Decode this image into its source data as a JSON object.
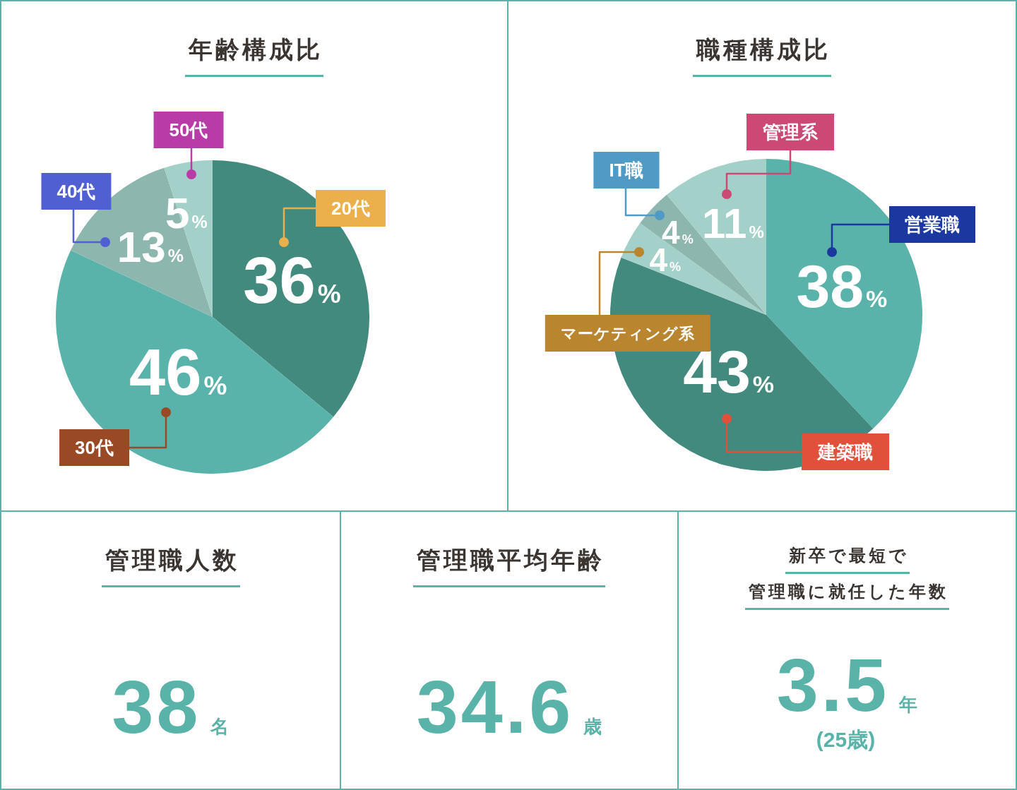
{
  "chart_data": [
    {
      "type": "pie",
      "title": "年齢構成比",
      "categories": [
        "20代",
        "30代",
        "40代",
        "50代"
      ],
      "values": [
        36,
        46,
        13,
        5
      ],
      "colors": [
        "#418a7d",
        "#59b3ab",
        "#8cb6ae",
        "#a3d0c8"
      ],
      "value_labels": [
        "36%",
        "46%",
        "13%",
        "5%"
      ]
    },
    {
      "type": "pie",
      "title": "職種構成比",
      "categories": [
        "営業職",
        "建築職",
        "マーケティング系",
        "IT職",
        "管理系"
      ],
      "values": [
        38,
        43,
        4,
        4,
        11
      ],
      "colors": [
        "#59b3ab",
        "#418a7d",
        "#a3d0c8",
        "#8cb6ae",
        "#a3d0c8"
      ],
      "value_labels": [
        "38%",
        "43%",
        "4%",
        "4%",
        "11%"
      ]
    },
    {
      "type": "other",
      "title": "管理職人数",
      "annotations": [
        "38",
        "名"
      ]
    },
    {
      "type": "other",
      "title": "管理職平均年齢",
      "annotations": [
        "34.6",
        "歳"
      ]
    },
    {
      "type": "other",
      "title": "新卒で最短で管理職に就任した年数",
      "annotations": [
        "3.5",
        "年",
        "(25歳)"
      ]
    }
  ]
}
